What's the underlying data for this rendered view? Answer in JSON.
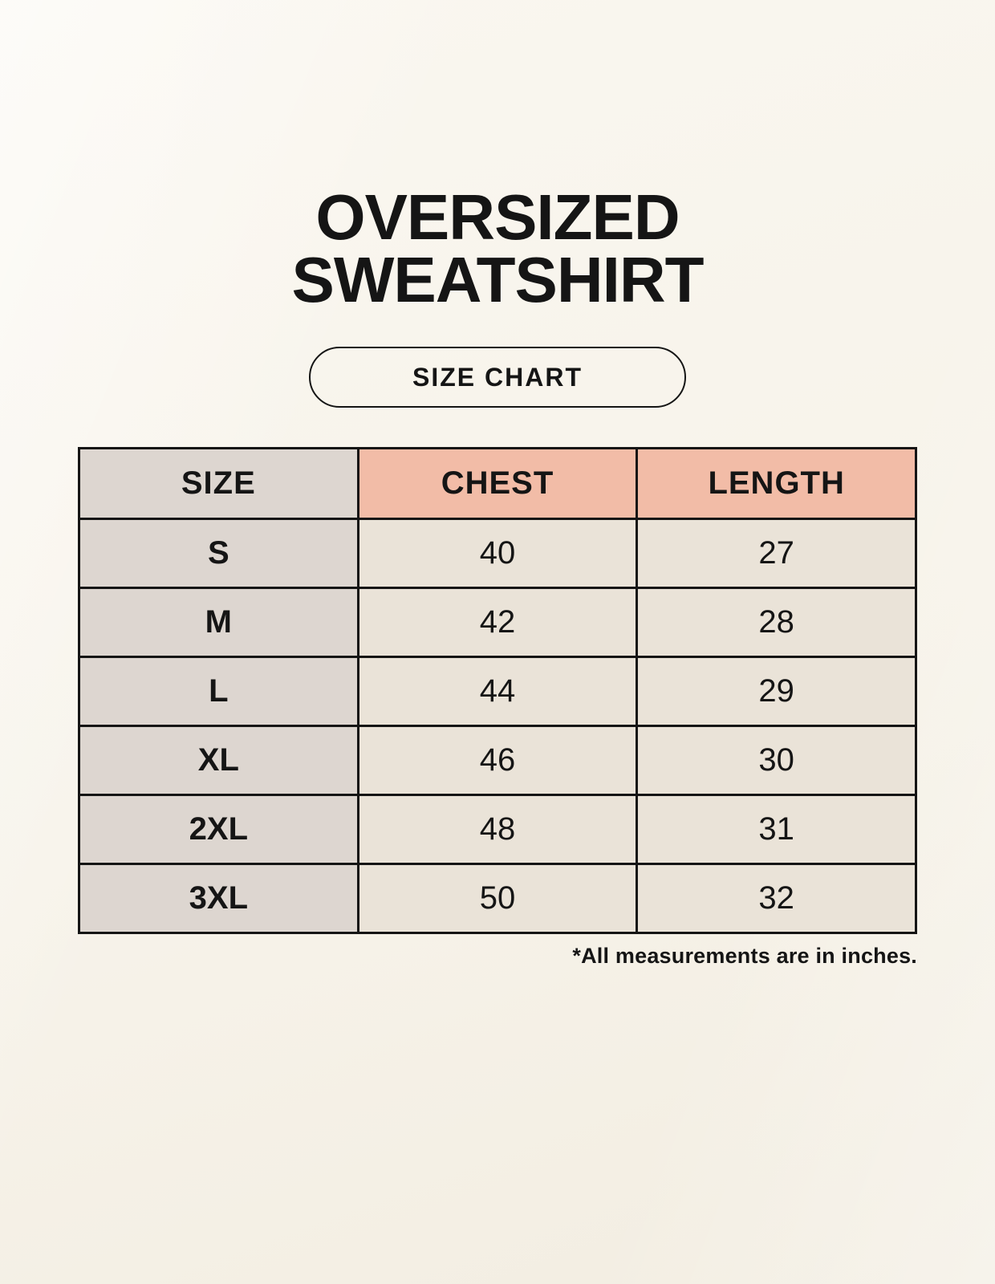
{
  "page": {
    "title_line1": "OVERSIZED",
    "title_line2": "SWEATSHIRT",
    "size_chart_badge": "SIZE CHART",
    "footnote": "*All measurements are in inches."
  },
  "chart_data": {
    "type": "table",
    "title": "OVERSIZED SWEATSHIRT SIZE CHART",
    "units": "inches",
    "columns": [
      "SIZE",
      "CHEST",
      "LENGTH"
    ],
    "rows": [
      {
        "size": "S",
        "chest": 40,
        "length": 27
      },
      {
        "size": "M",
        "chest": 42,
        "length": 28
      },
      {
        "size": "L",
        "chest": 44,
        "length": 29
      },
      {
        "size": "XL",
        "chest": 46,
        "length": 30
      },
      {
        "size": "2XL",
        "chest": 48,
        "length": 31
      },
      {
        "size": "3XL",
        "chest": 50,
        "length": 32
      }
    ]
  },
  "colors": {
    "background": "#f7f3ea",
    "header_accent": "#f2bca7",
    "size_column": "#ddd6d0",
    "cell": "#eae3d8",
    "border": "#151515",
    "text": "#151515"
  }
}
